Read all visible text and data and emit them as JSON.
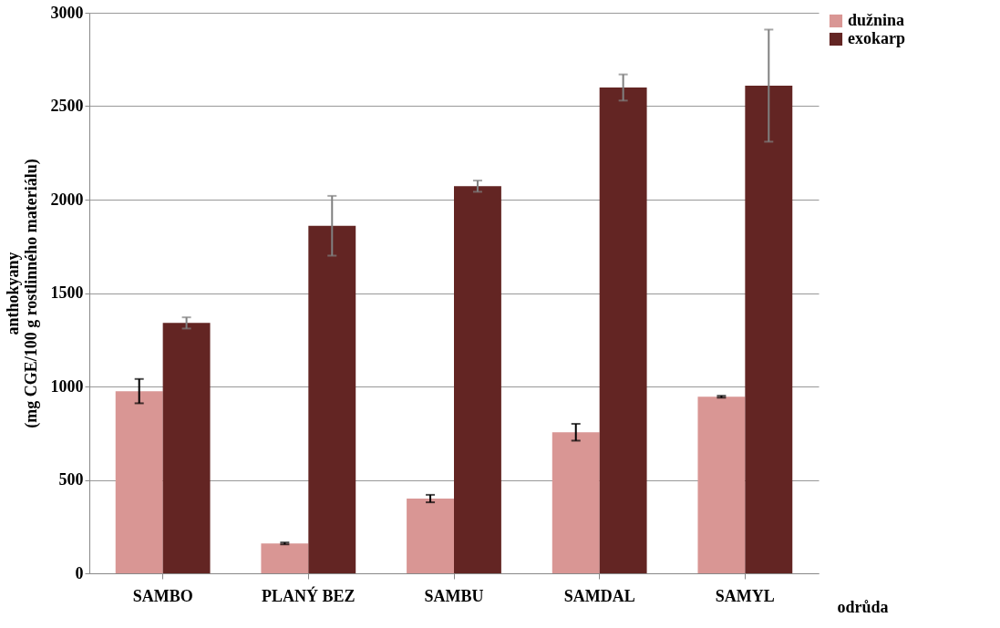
{
  "chart_data": {
    "type": "bar",
    "xlabel": "odrůda",
    "ylabel": "anthokyany\n(mg CGE/100 g rostlinného materiálu)",
    "categories": [
      "SAMBO",
      "PLANÝ BEZ",
      "SAMBU",
      "SAMDAL",
      "SAMYL"
    ],
    "series": [
      {
        "name": "dužnina",
        "color": "#d99694",
        "values": [
          975,
          160,
          400,
          755,
          945
        ],
        "errors": [
          65,
          5,
          20,
          45,
          5
        ]
      },
      {
        "name": "exokarp",
        "color": "#632523",
        "values": [
          1340,
          1860,
          2072,
          2600,
          2610
        ],
        "errors": [
          30,
          160,
          30,
          70,
          300
        ]
      }
    ],
    "ylim": [
      0,
      3000
    ],
    "yticks": [
      0,
      500,
      1000,
      1500,
      2000,
      2500,
      3000
    ],
    "grid": "y",
    "legend": "right"
  }
}
